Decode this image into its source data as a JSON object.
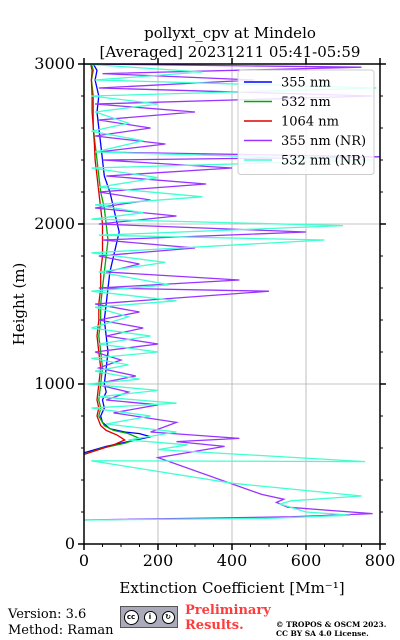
{
  "chart_data": {
    "type": "line",
    "title": "pollyxt_cpv at Mindelo",
    "subtitle": "[Averaged] 20231211 05:41-05:59",
    "xlabel": "Extinction Coefficient [Mm⁻¹]",
    "ylabel": "Height (m)",
    "xlim": [
      0,
      800
    ],
    "ylim": [
      0,
      3000
    ],
    "xticks": [
      0,
      200,
      400,
      600,
      800
    ],
    "yticks": [
      0,
      1000,
      2000,
      3000
    ],
    "grid": true,
    "legend_position": "top-right",
    "series": [
      {
        "name": "355 nm",
        "color": "#0000ff",
        "points": [
          [
            0,
            570
          ],
          [
            60,
            610
          ],
          [
            120,
            640
          ],
          [
            180,
            670
          ],
          [
            150,
            690
          ],
          [
            110,
            700
          ],
          [
            70,
            720
          ],
          [
            50,
            760
          ],
          [
            45,
            800
          ],
          [
            55,
            850
          ],
          [
            50,
            900
          ],
          [
            60,
            950
          ],
          [
            55,
            1000
          ],
          [
            60,
            1100
          ],
          [
            65,
            1200
          ],
          [
            60,
            1300
          ],
          [
            55,
            1400
          ],
          [
            60,
            1500
          ],
          [
            65,
            1600
          ],
          [
            70,
            1700
          ],
          [
            80,
            1800
          ],
          [
            90,
            1900
          ],
          [
            95,
            1950
          ],
          [
            90,
            2000
          ],
          [
            80,
            2100
          ],
          [
            70,
            2200
          ],
          [
            55,
            2300
          ],
          [
            50,
            2400
          ],
          [
            45,
            2500
          ],
          [
            40,
            2600
          ],
          [
            35,
            2700
          ],
          [
            40,
            2800
          ],
          [
            30,
            2900
          ],
          [
            35,
            2960
          ],
          [
            25,
            3000
          ]
        ]
      },
      {
        "name": "532 nm",
        "color": "#00aa00",
        "points": [
          [
            0,
            560
          ],
          [
            50,
            600
          ],
          [
            110,
            630
          ],
          [
            150,
            660
          ],
          [
            120,
            690
          ],
          [
            80,
            710
          ],
          [
            55,
            740
          ],
          [
            40,
            800
          ],
          [
            45,
            850
          ],
          [
            40,
            900
          ],
          [
            45,
            1000
          ],
          [
            50,
            1100
          ],
          [
            45,
            1200
          ],
          [
            40,
            1300
          ],
          [
            45,
            1400
          ],
          [
            45,
            1500
          ],
          [
            50,
            1600
          ],
          [
            55,
            1700
          ],
          [
            60,
            1800
          ],
          [
            65,
            1900
          ],
          [
            60,
            2000
          ],
          [
            55,
            2100
          ],
          [
            45,
            2200
          ],
          [
            40,
            2300
          ],
          [
            35,
            2400
          ],
          [
            30,
            2500
          ],
          [
            25,
            2600
          ],
          [
            25,
            2700
          ],
          [
            25,
            2800
          ],
          [
            20,
            2900
          ],
          [
            25,
            2960
          ],
          [
            20,
            3000
          ]
        ]
      },
      {
        "name": "1064 nm",
        "color": "#dd0000",
        "points": [
          [
            0,
            560
          ],
          [
            40,
            590
          ],
          [
            80,
            620
          ],
          [
            110,
            650
          ],
          [
            90,
            680
          ],
          [
            60,
            710
          ],
          [
            45,
            740
          ],
          [
            35,
            800
          ],
          [
            40,
            850
          ],
          [
            35,
            900
          ],
          [
            40,
            1000
          ],
          [
            45,
            1100
          ],
          [
            40,
            1200
          ],
          [
            35,
            1300
          ],
          [
            40,
            1400
          ],
          [
            40,
            1500
          ],
          [
            45,
            1600
          ],
          [
            45,
            1700
          ],
          [
            50,
            1800
          ],
          [
            50,
            1900
          ],
          [
            50,
            2000
          ],
          [
            45,
            2100
          ],
          [
            40,
            2200
          ],
          [
            35,
            2300
          ],
          [
            30,
            2400
          ],
          [
            28,
            2500
          ],
          [
            25,
            2600
          ],
          [
            22,
            2700
          ],
          [
            22,
            2800
          ],
          [
            20,
            2900
          ],
          [
            22,
            2960
          ],
          [
            18,
            3000
          ]
        ]
      },
      {
        "name": "355 nm (NR)",
        "color": "#9933ff",
        "points": [
          [
            0,
            150
          ],
          [
            560,
            170
          ],
          [
            780,
            190
          ],
          [
            550,
            230
          ],
          [
            520,
            260
          ],
          [
            540,
            280
          ],
          [
            480,
            310
          ],
          [
            200,
            540
          ],
          [
            380,
            610
          ],
          [
            250,
            640
          ],
          [
            420,
            660
          ],
          [
            180,
            700
          ],
          [
            250,
            760
          ],
          [
            80,
            820
          ],
          [
            200,
            870
          ],
          [
            60,
            900
          ],
          [
            120,
            950
          ],
          [
            30,
            1000
          ],
          [
            140,
            1050
          ],
          [
            40,
            1100
          ],
          [
            100,
            1150
          ],
          [
            30,
            1200
          ],
          [
            200,
            1250
          ],
          [
            60,
            1300
          ],
          [
            160,
            1350
          ],
          [
            40,
            1400
          ],
          [
            150,
            1450
          ],
          [
            30,
            1500
          ],
          [
            500,
            1580
          ],
          [
            40,
            1600
          ],
          [
            420,
            1650
          ],
          [
            60,
            1700
          ],
          [
            150,
            1750
          ],
          [
            40,
            1800
          ],
          [
            300,
            1850
          ],
          [
            50,
            1900
          ],
          [
            600,
            1950
          ],
          [
            40,
            2000
          ],
          [
            250,
            2050
          ],
          [
            30,
            2100
          ],
          [
            180,
            2150
          ],
          [
            40,
            2200
          ],
          [
            330,
            2250
          ],
          [
            60,
            2300
          ],
          [
            400,
            2350
          ],
          [
            50,
            2400
          ],
          [
            800,
            2420
          ],
          [
            40,
            2450
          ],
          [
            220,
            2500
          ],
          [
            30,
            2550
          ],
          [
            180,
            2600
          ],
          [
            40,
            2650
          ],
          [
            300,
            2700
          ],
          [
            30,
            2750
          ],
          [
            780,
            2800
          ],
          [
            40,
            2850
          ],
          [
            460,
            2900
          ],
          [
            50,
            2940
          ],
          [
            750,
            2980
          ],
          [
            0,
            3000
          ]
        ]
      },
      {
        "name": "532 nm (NR)",
        "color": "#40ffd0",
        "points": [
          [
            0,
            150
          ],
          [
            500,
            160
          ],
          [
            720,
            180
          ],
          [
            600,
            200
          ],
          [
            530,
            250
          ],
          [
            560,
            270
          ],
          [
            750,
            300
          ],
          [
            400,
            380
          ],
          [
            20,
            520
          ],
          [
            760,
            515
          ],
          [
            200,
            590
          ],
          [
            280,
            620
          ],
          [
            120,
            650
          ],
          [
            250,
            700
          ],
          [
            60,
            750
          ],
          [
            180,
            800
          ],
          [
            20,
            850
          ],
          [
            250,
            880
          ],
          [
            40,
            920
          ],
          [
            200,
            960
          ],
          [
            10,
            1000
          ],
          [
            150,
            1030
          ],
          [
            30,
            1080
          ],
          [
            120,
            1120
          ],
          [
            20,
            1160
          ],
          [
            200,
            1200
          ],
          [
            40,
            1250
          ],
          [
            180,
            1300
          ],
          [
            20,
            1350
          ],
          [
            120,
            1420
          ],
          [
            30,
            1480
          ],
          [
            250,
            1520
          ],
          [
            20,
            1580
          ],
          [
            230,
            1620
          ],
          [
            40,
            1700
          ],
          [
            220,
            1760
          ],
          [
            20,
            1820
          ],
          [
            650,
            1900
          ],
          [
            40,
            1930
          ],
          [
            700,
            1990
          ],
          [
            20,
            2030
          ],
          [
            160,
            2070
          ],
          [
            30,
            2120
          ],
          [
            320,
            2170
          ],
          [
            40,
            2230
          ],
          [
            200,
            2290
          ],
          [
            20,
            2350
          ],
          [
            780,
            2400
          ],
          [
            30,
            2450
          ],
          [
            160,
            2520
          ],
          [
            20,
            2580
          ],
          [
            120,
            2630
          ],
          [
            30,
            2700
          ],
          [
            200,
            2750
          ],
          [
            20,
            2800
          ],
          [
            790,
            2850
          ],
          [
            30,
            2900
          ],
          [
            320,
            2950
          ],
          [
            0,
            3000
          ]
        ]
      }
    ]
  },
  "footer": {
    "version_line": "Version: 3.6",
    "method_line": "Method: Raman",
    "preliminary_line1": "Preliminary",
    "preliminary_line2": "Results.",
    "copyright_line1": "© TROPOS & OSCM 2023.",
    "copyright_line2": "CC BY SA 4.0 License.",
    "cc_badge_text": "BY SA"
  }
}
